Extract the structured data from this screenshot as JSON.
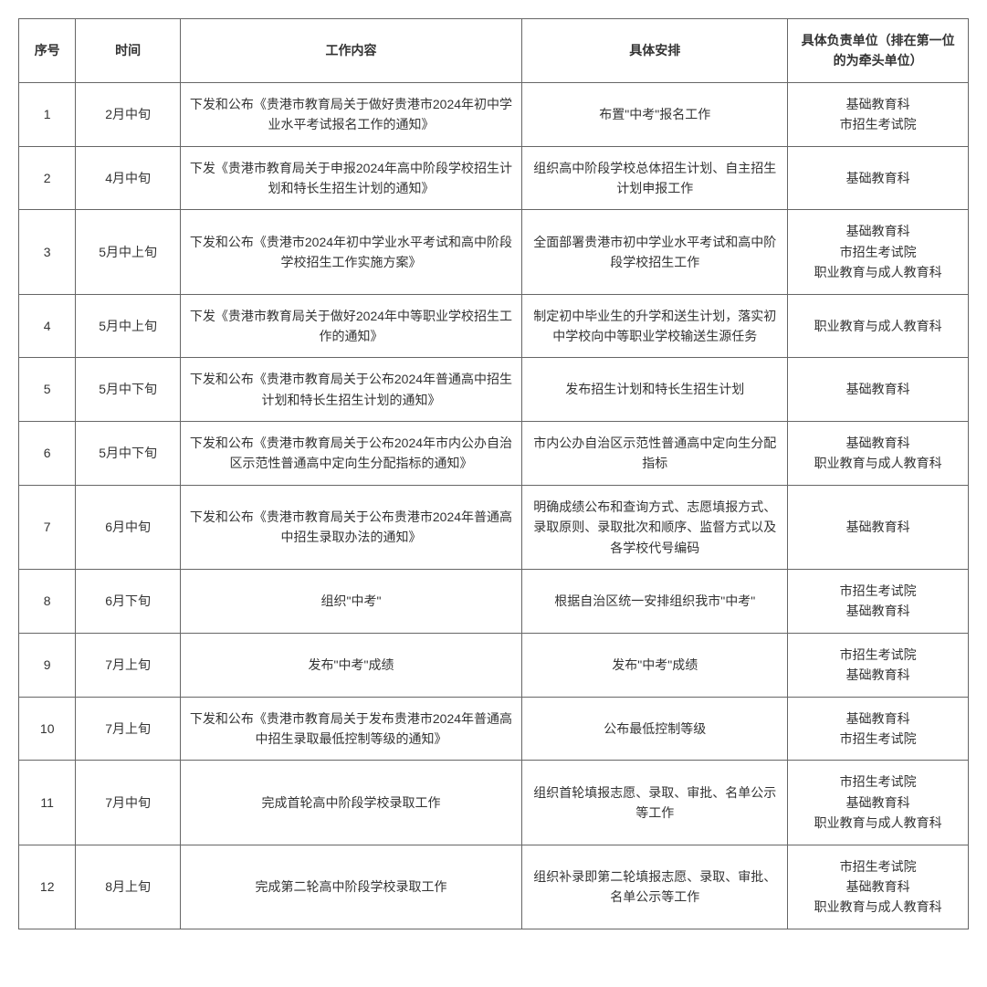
{
  "table": {
    "headers": {
      "num": "序号",
      "time": "时间",
      "content": "工作内容",
      "arrange": "具体安排",
      "unit": "具体负责单位（排在第一位的为牵头单位）"
    },
    "rows": [
      {
        "num": "1",
        "time": "2月中旬",
        "content": "下发和公布《贵港市教育局关于做好贵港市2024年初中学业水平考试报名工作的通知》",
        "arrange": "布置\"中考\"报名工作",
        "unit": "基础教育科\n市招生考试院"
      },
      {
        "num": "2",
        "time": "4月中旬",
        "content": "下发《贵港市教育局关于申报2024年高中阶段学校招生计划和特长生招生计划的通知》",
        "arrange": "组织高中阶段学校总体招生计划、自主招生计划申报工作",
        "unit": "基础教育科"
      },
      {
        "num": "3",
        "time": "5月中上旬",
        "content": "下发和公布《贵港市2024年初中学业水平考试和高中阶段学校招生工作实施方案》",
        "arrange": "全面部署贵港市初中学业水平考试和高中阶段学校招生工作",
        "unit": "基础教育科\n市招生考试院\n职业教育与成人教育科"
      },
      {
        "num": "4",
        "time": "5月中上旬",
        "content": "下发《贵港市教育局关于做好2024年中等职业学校招生工作的通知》",
        "arrange": "制定初中毕业生的升学和送生计划，落实初中学校向中等职业学校输送生源任务",
        "unit": "职业教育与成人教育科"
      },
      {
        "num": "5",
        "time": "5月中下旬",
        "content": "下发和公布《贵港市教育局关于公布2024年普通高中招生计划和特长生招生计划的通知》",
        "arrange": "发布招生计划和特长生招生计划",
        "unit": "基础教育科"
      },
      {
        "num": "6",
        "time": "5月中下旬",
        "content": "下发和公布《贵港市教育局关于公布2024年市内公办自治区示范性普通高中定向生分配指标的通知》",
        "arrange": "市内公办自治区示范性普通高中定向生分配指标",
        "unit": "基础教育科\n职业教育与成人教育科"
      },
      {
        "num": "7",
        "time": "6月中旬",
        "content": "下发和公布《贵港市教育局关于公布贵港市2024年普通高中招生录取办法的通知》",
        "arrange": "明确成绩公布和查询方式、志愿填报方式、录取原则、录取批次和顺序、监督方式以及各学校代号编码",
        "unit": "基础教育科"
      },
      {
        "num": "8",
        "time": "6月下旬",
        "content": "组织\"中考\"",
        "arrange": "根据自治区统一安排组织我市\"中考\"",
        "unit": "市招生考试院\n基础教育科"
      },
      {
        "num": "9",
        "time": "7月上旬",
        "content": "发布\"中考\"成绩",
        "arrange": "发布\"中考\"成绩",
        "unit": "市招生考试院\n基础教育科"
      },
      {
        "num": "10",
        "time": "7月上旬",
        "content": "下发和公布《贵港市教育局关于发布贵港市2024年普通高中招生录取最低控制等级的通知》",
        "arrange": "公布最低控制等级",
        "unit": "基础教育科\n市招生考试院"
      },
      {
        "num": "11",
        "time": "7月中旬",
        "content": "完成首轮高中阶段学校录取工作",
        "arrange": "组织首轮填报志愿、录取、审批、名单公示等工作",
        "unit": "市招生考试院\n基础教育科\n职业教育与成人教育科"
      },
      {
        "num": "12",
        "time": "8月上旬",
        "content": "完成第二轮高中阶段学校录取工作",
        "arrange": "组织补录即第二轮填报志愿、录取、审批、名单公示等工作",
        "unit": "市招生考试院\n基础教育科\n职业教育与成人教育科"
      }
    ],
    "styling": {
      "border_color": "#666666",
      "text_color": "#333333",
      "background_color": "#ffffff",
      "font_size": 14,
      "header_font_weight": "bold",
      "column_widths": {
        "num": 60,
        "time": 110,
        "content": 360,
        "arrange": 280,
        "unit": 190
      }
    }
  }
}
